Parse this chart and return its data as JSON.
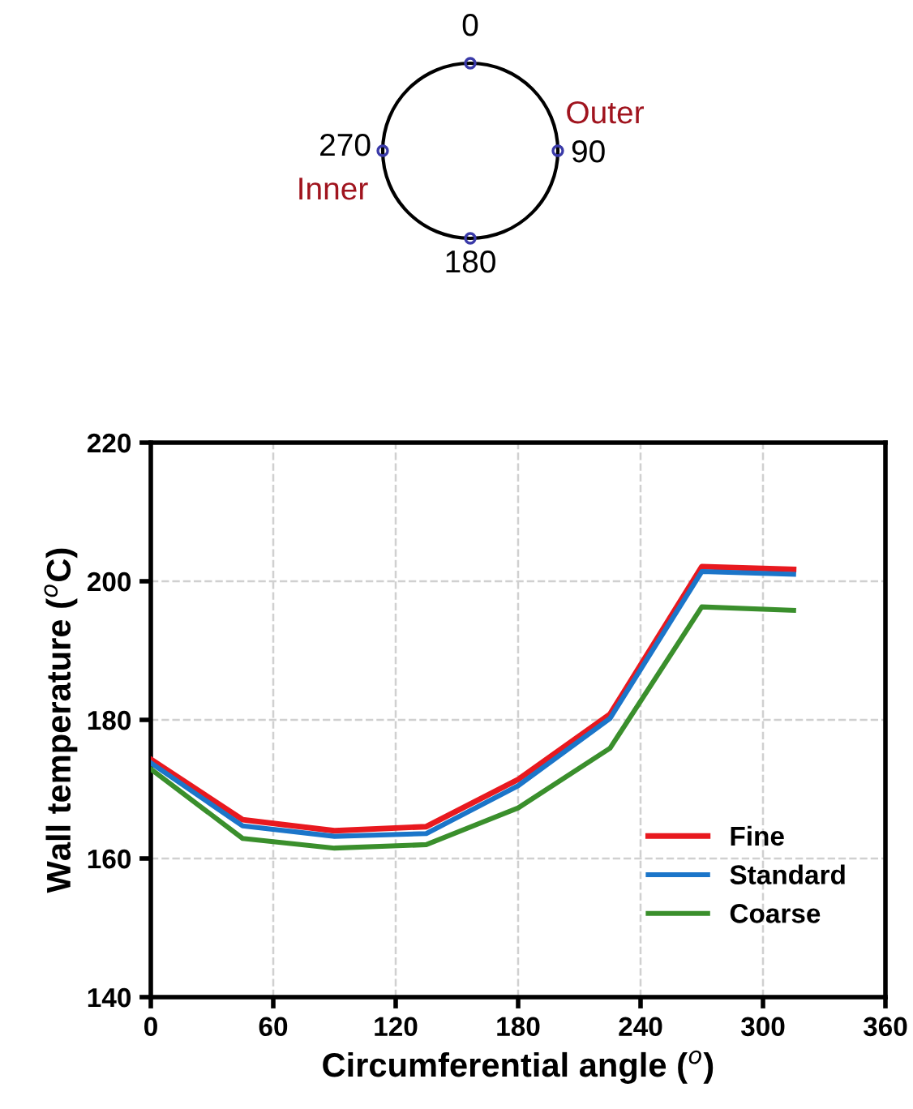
{
  "chart_data": {
    "type": "line",
    "xlabel": "Circumferential angle ($^{o}$)",
    "ylabel": "Wall temperature ($^{o}$C)",
    "x": [
      0,
      45,
      90,
      135,
      180,
      225,
      270,
      315
    ],
    "series": [
      {
        "name": "Fine",
        "color": "#e8191f",
        "values": [
          174.3,
          165.6,
          164.0,
          164.6,
          171.4,
          180.8,
          202.1,
          201.7
        ]
      },
      {
        "name": "Standard",
        "color": "#1b75c9",
        "values": [
          173.8,
          164.7,
          163.2,
          163.6,
          170.5,
          180.2,
          201.4,
          201.0
        ]
      },
      {
        "name": "Coarse",
        "color": "#3a8f2c",
        "values": [
          172.9,
          162.9,
          161.5,
          162.0,
          167.3,
          175.9,
          196.3,
          195.8
        ]
      }
    ],
    "xlim": [
      0,
      360
    ],
    "xticks": [
      0,
      60,
      120,
      180,
      240,
      300,
      360
    ],
    "ylim": [
      140,
      220
    ],
    "yticks": [
      140,
      160,
      180,
      200,
      220
    ],
    "grid": true,
    "legend": "bottom right",
    "marker": "none",
    "line_style": "solid",
    "annotations": [
      "0",
      "90",
      "180",
      "270",
      "Outer",
      "Inner"
    ]
  }
}
